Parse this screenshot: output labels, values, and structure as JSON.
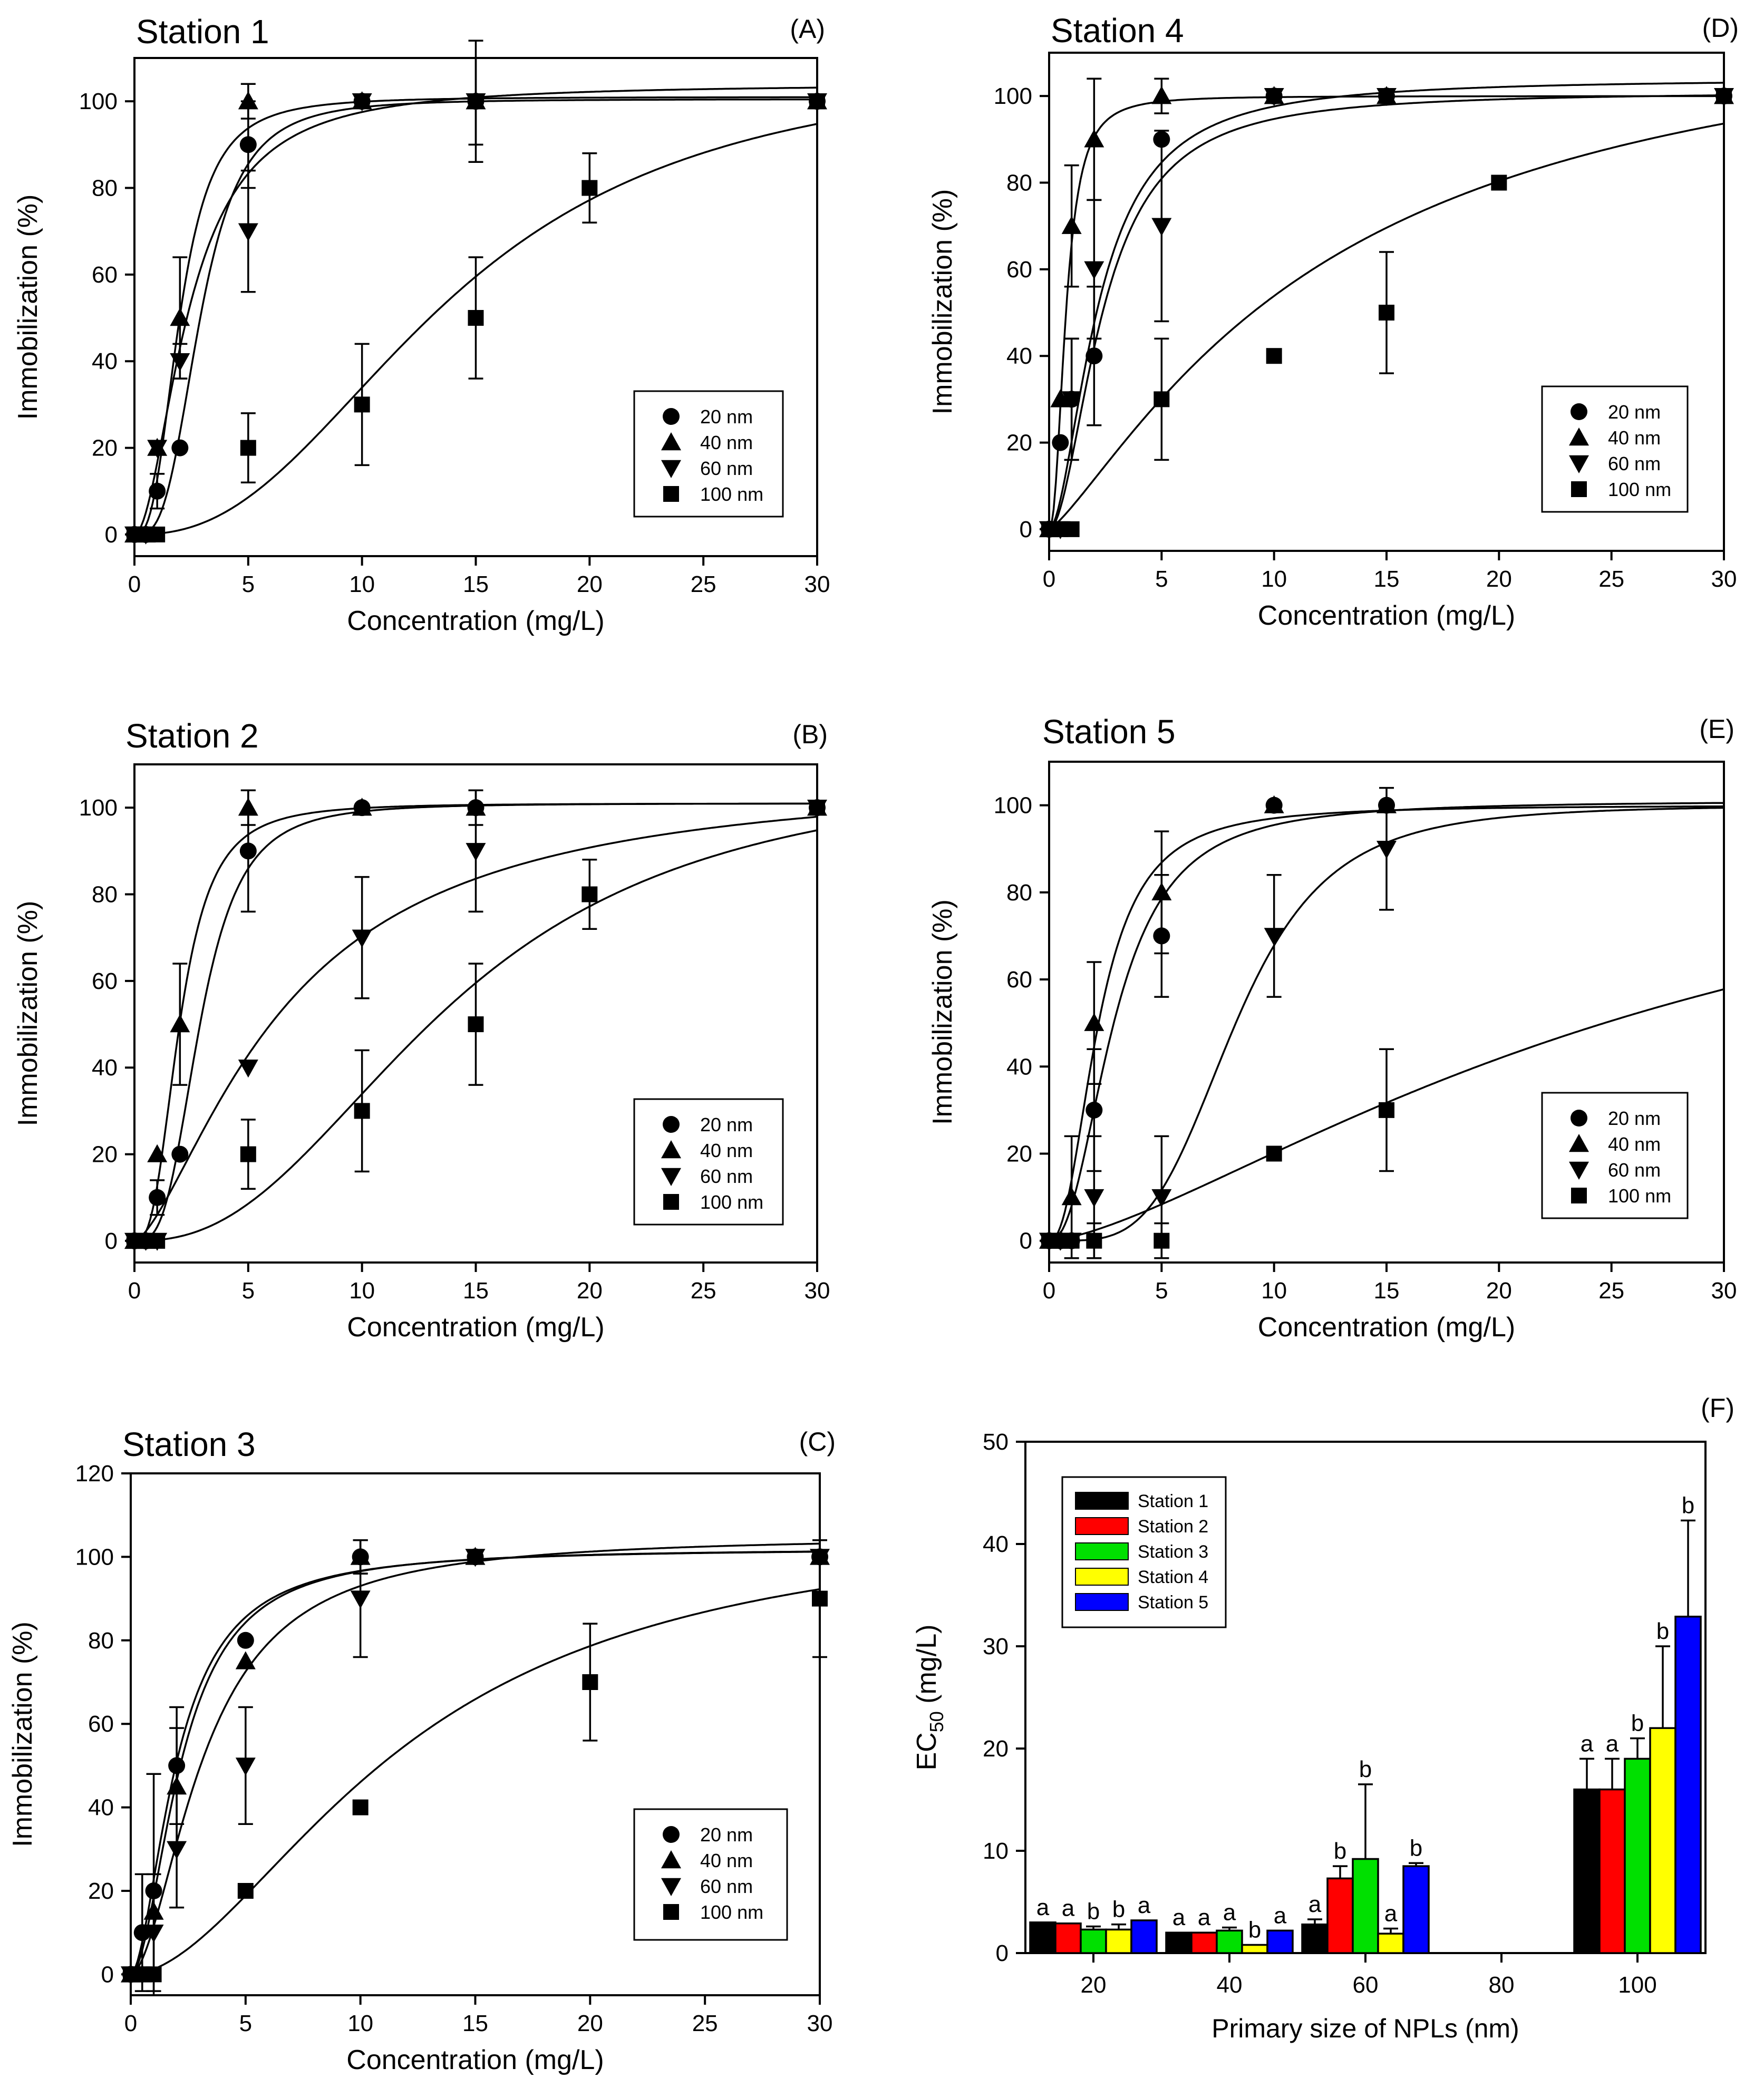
{
  "figure": {
    "x_axis_label": "Concentration (mg/L)",
    "y_axis_label": "Immobilization (%)",
    "legend_labels": [
      "20 nm",
      "40 nm",
      "60 nm",
      "100 nm"
    ]
  },
  "chart_data": [
    {
      "panel": "A",
      "type": "scatter",
      "title": "Station 1",
      "panel_label": "(A)",
      "xlabel": "Concentration (mg/L)",
      "ylabel": "Immobilization (%)",
      "xlim": [
        0,
        30
      ],
      "ylim": [
        -5,
        110
      ],
      "xticks": [
        0,
        5,
        10,
        15,
        20,
        25,
        30
      ],
      "yticks": [
        0,
        20,
        40,
        60,
        80,
        100
      ],
      "legend_position": "lower-right",
      "series": [
        {
          "name": "20 nm",
          "marker": "circle",
          "x": [
            0,
            0.5,
            1,
            2,
            5,
            10,
            15,
            30
          ],
          "y": [
            0,
            0,
            10,
            20,
            90,
            100,
            100,
            100
          ],
          "err": [
            0,
            0,
            4,
            0,
            10,
            0,
            0,
            0
          ],
          "curve": {
            "ec50": 2.9,
            "hill": 3.2,
            "top": 100.5
          }
        },
        {
          "name": "40 nm",
          "marker": "triangle-up",
          "x": [
            0,
            0.5,
            1,
            2,
            5,
            10,
            15,
            30
          ],
          "y": [
            0,
            0,
            20,
            50,
            100,
            100,
            100,
            100
          ],
          "err": [
            0,
            0,
            0,
            14,
            4,
            0,
            10,
            0
          ],
          "curve": {
            "ec50": 2.0,
            "hill": 2.8,
            "top": 101
          }
        },
        {
          "name": "60 nm",
          "marker": "triangle-down",
          "x": [
            0,
            0.5,
            1,
            2,
            5,
            10,
            15,
            30
          ],
          "y": [
            0,
            0,
            20,
            40,
            70,
            100,
            100,
            100
          ],
          "err": [
            0,
            0,
            0,
            4,
            14,
            0,
            14,
            0
          ],
          "curve": {
            "ec50": 2.4,
            "hill": 1.9,
            "top": 104
          }
        },
        {
          "name": "100 nm",
          "marker": "square",
          "x": [
            0,
            0.5,
            1,
            5,
            10,
            15,
            20,
            30
          ],
          "y": [
            0,
            0,
            0,
            20,
            30,
            50,
            80,
            100
          ],
          "err": [
            0,
            0,
            0,
            8,
            14,
            14,
            8,
            0
          ],
          "curve": {
            "ec50": 14.0,
            "hill": 2.4,
            "top": 110
          }
        }
      ]
    },
    {
      "panel": "B",
      "type": "scatter",
      "title": "Station 2",
      "panel_label": "(B)",
      "xlabel": "Concentration (mg/L)",
      "ylabel": "Immobilization (%)",
      "xlim": [
        0,
        30
      ],
      "ylim": [
        -5,
        110
      ],
      "xticks": [
        0,
        5,
        10,
        15,
        20,
        25,
        30
      ],
      "yticks": [
        0,
        20,
        40,
        60,
        80,
        100
      ],
      "legend_position": "lower-right",
      "series": [
        {
          "name": "20 nm",
          "marker": "circle",
          "x": [
            0,
            0.5,
            1,
            2,
            5,
            10,
            15,
            30
          ],
          "y": [
            0,
            0,
            10,
            20,
            90,
            100,
            100,
            100
          ],
          "err": [
            0,
            0,
            4,
            0,
            14,
            0,
            0,
            0
          ],
          "curve": {
            "ec50": 2.9,
            "hill": 3.2,
            "top": 101
          }
        },
        {
          "name": "40 nm",
          "marker": "triangle-up",
          "x": [
            0,
            0.5,
            1,
            2,
            5,
            10,
            15,
            30
          ],
          "y": [
            0,
            0,
            20,
            50,
            100,
            100,
            100,
            100
          ],
          "err": [
            0,
            0,
            0,
            14,
            4,
            0,
            4,
            0
          ],
          "curve": {
            "ec50": 2.0,
            "hill": 2.8,
            "top": 101
          }
        },
        {
          "name": "60 nm",
          "marker": "triangle-down",
          "x": [
            0,
            0.5,
            1,
            5,
            10,
            15,
            30
          ],
          "y": [
            0,
            0,
            0,
            40,
            70,
            90,
            100
          ],
          "err": [
            0,
            0,
            0,
            0,
            14,
            14,
            0
          ],
          "curve": {
            "ec50": 6.6,
            "hill": 1.5,
            "top": 108
          }
        },
        {
          "name": "100 nm",
          "marker": "square",
          "x": [
            0,
            0.5,
            1,
            5,
            10,
            15,
            20,
            30
          ],
          "y": [
            0,
            0,
            0,
            20,
            30,
            50,
            80,
            100
          ],
          "err": [
            0,
            0,
            0,
            8,
            14,
            14,
            8,
            0
          ],
          "curve": {
            "ec50": 14.0,
            "hill": 2.4,
            "top": 110
          }
        }
      ]
    },
    {
      "panel": "C",
      "type": "scatter",
      "title": "Station 3",
      "panel_label": "(C)",
      "xlabel": "Concentration (mg/L)",
      "ylabel": "Immobilization (%)",
      "xlim": [
        0,
        30
      ],
      "ylim": [
        -5,
        120
      ],
      "xticks": [
        0,
        5,
        10,
        15,
        20,
        25,
        30
      ],
      "yticks": [
        0,
        20,
        40,
        60,
        80,
        100,
        120
      ],
      "legend_position": "lower-right",
      "series": [
        {
          "name": "20 nm",
          "marker": "circle",
          "x": [
            0,
            0.5,
            1,
            2,
            5,
            10,
            15,
            30
          ],
          "y": [
            0,
            10,
            20,
            50,
            80,
            100,
            100,
            100
          ],
          "err": [
            0,
            14,
            28,
            14,
            0,
            4,
            0,
            0
          ],
          "curve": {
            "ec50": 2.0,
            "hill": 1.8,
            "top": 102
          }
        },
        {
          "name": "40 nm",
          "marker": "triangle-up",
          "x": [
            0,
            0.5,
            1,
            2,
            5,
            10,
            15,
            30
          ],
          "y": [
            0,
            0,
            15,
            45,
            75,
            100,
            100,
            100
          ],
          "err": [
            0,
            0,
            0,
            14,
            0,
            4,
            0,
            0
          ],
          "curve": {
            "ec50": 2.2,
            "hill": 1.9,
            "top": 102
          }
        },
        {
          "name": "60 nm",
          "marker": "triangle-down",
          "x": [
            0,
            0.5,
            1,
            2,
            5,
            10,
            15,
            30
          ],
          "y": [
            0,
            0,
            10,
            30,
            50,
            90,
            100,
            100
          ],
          "err": [
            0,
            0,
            14,
            14,
            14,
            14,
            0,
            0
          ],
          "curve": {
            "ec50": 3.2,
            "hill": 1.8,
            "top": 105
          }
        },
        {
          "name": "100 nm",
          "marker": "square",
          "x": [
            0,
            0.5,
            1,
            5,
            10,
            20,
            30
          ],
          "y": [
            0,
            0,
            0,
            20,
            40,
            70,
            90
          ],
          "err": [
            0,
            0,
            0,
            0,
            0,
            14,
            14
          ],
          "curve": {
            "ec50": 12.0,
            "hill": 1.8,
            "top": 110
          }
        }
      ]
    },
    {
      "panel": "D",
      "type": "scatter",
      "title": "Station 4",
      "panel_label": "(D)",
      "xlabel": "Concentration (mg/L)",
      "ylabel": "Immobilization (%)",
      "xlim": [
        0,
        30
      ],
      "ylim": [
        -5,
        110
      ],
      "xticks": [
        0,
        5,
        10,
        15,
        20,
        25,
        30
      ],
      "yticks": [
        0,
        20,
        40,
        60,
        80,
        100
      ],
      "legend_position": "lower-right",
      "series": [
        {
          "name": "20 nm",
          "marker": "circle",
          "x": [
            0,
            0.5,
            1,
            2,
            5,
            10,
            15,
            30
          ],
          "y": [
            0,
            20,
            30,
            40,
            90,
            100,
            100,
            100
          ],
          "err": [
            0,
            0,
            14,
            16,
            0,
            0,
            0,
            0
          ],
          "curve": {
            "ec50": 2.4,
            "hill": 1.9,
            "top": 101
          }
        },
        {
          "name": "40 nm",
          "marker": "triangle-up",
          "x": [
            0,
            0.5,
            1,
            2,
            5,
            10,
            15,
            30
          ],
          "y": [
            0,
            30,
            70,
            90,
            100,
            100,
            100,
            100
          ],
          "err": [
            0,
            0,
            14,
            14,
            4,
            0,
            0,
            0
          ],
          "curve": {
            "ec50": 0.75,
            "hill": 2.3,
            "top": 100
          }
        },
        {
          "name": "60 nm",
          "marker": "triangle-down",
          "x": [
            0,
            0.5,
            1,
            2,
            5,
            10,
            15,
            30
          ],
          "y": [
            0,
            0,
            30,
            60,
            70,
            100,
            100,
            100
          ],
          "err": [
            0,
            0,
            14,
            16,
            22,
            0,
            0,
            0
          ],
          "curve": {
            "ec50": 2.2,
            "hill": 1.8,
            "top": 104
          }
        },
        {
          "name": "100 nm",
          "marker": "square",
          "x": [
            0,
            0.5,
            1,
            5,
            10,
            15,
            20,
            30
          ],
          "y": [
            0,
            0,
            0,
            30,
            40,
            50,
            80,
            100
          ],
          "err": [
            0,
            0,
            0,
            14,
            0,
            14,
            0,
            0
          ],
          "curve": {
            "ec50": 12.5,
            "hill": 1.25,
            "top": 125
          }
        }
      ]
    },
    {
      "panel": "E",
      "type": "scatter",
      "title": "Station 5",
      "panel_label": "(E)",
      "xlabel": "Concentration (mg/L)",
      "ylabel": "Immobilization (%)",
      "xlim": [
        0,
        30
      ],
      "ylim": [
        -5,
        110
      ],
      "xticks": [
        0,
        5,
        10,
        15,
        20,
        25,
        30
      ],
      "yticks": [
        0,
        20,
        40,
        60,
        80,
        100
      ],
      "legend_position": "lower-right",
      "series": [
        {
          "name": "20 nm",
          "marker": "circle",
          "x": [
            0,
            0.5,
            1,
            2,
            5,
            10,
            15
          ],
          "y": [
            0,
            0,
            0,
            30,
            70,
            100,
            100
          ],
          "err": [
            0,
            0,
            0,
            14,
            14,
            0,
            0
          ],
          "curve": {
            "ec50": 2.9,
            "hill": 2.3,
            "top": 101
          }
        },
        {
          "name": "40 nm",
          "marker": "triangle-up",
          "x": [
            0,
            0.5,
            1,
            2,
            5,
            10,
            15
          ],
          "y": [
            0,
            0,
            10,
            50,
            80,
            100,
            100
          ],
          "err": [
            0,
            0,
            14,
            14,
            14,
            0,
            0
          ],
          "curve": {
            "ec50": 2.2,
            "hill": 2.3,
            "top": 100
          }
        },
        {
          "name": "60 nm",
          "marker": "triangle-down",
          "x": [
            0,
            0.5,
            1,
            2,
            5,
            10,
            15
          ],
          "y": [
            0,
            0,
            0,
            10,
            10,
            70,
            90
          ],
          "err": [
            0,
            0,
            0,
            14,
            14,
            14,
            14
          ],
          "curve": {
            "ec50": 8.3,
            "hill": 4.0,
            "top": 100
          }
        },
        {
          "name": "100 nm",
          "marker": "square",
          "x": [
            0,
            0.5,
            1,
            2,
            5,
            10,
            15
          ],
          "y": [
            0,
            0,
            0,
            0,
            0,
            20,
            30
          ],
          "err": [
            0,
            0,
            0,
            4,
            4,
            0,
            14
          ],
          "curve": {
            "ec50": 28.0,
            "hill": 1.45,
            "top": 110
          }
        }
      ]
    },
    {
      "panel": "F",
      "type": "bar",
      "title": "",
      "panel_label": "(F)",
      "xlabel": "Primary size of NPLs  (nm)",
      "ylabel": "EC50 (mg/L)",
      "categories": [
        "20",
        "40",
        "60",
        "80",
        "100"
      ],
      "ylim": [
        0,
        50
      ],
      "yticks": [
        0,
        10,
        20,
        30,
        40,
        50
      ],
      "legend_position": "top-left",
      "series": [
        {
          "name": "Station 1",
          "color": "#000000",
          "values": [
            3.0,
            2.0,
            2.8,
            null,
            16.0
          ],
          "err": [
            0,
            0,
            0.5,
            null,
            3.0
          ],
          "letters": [
            "a",
            "a",
            "a",
            null,
            "a"
          ]
        },
        {
          "name": "Station 2",
          "color": "#ff0000",
          "values": [
            2.9,
            2.0,
            7.3,
            null,
            16.0
          ],
          "err": [
            0,
            0,
            1.2,
            null,
            3.0
          ],
          "letters": [
            "a",
            "a",
            "b",
            null,
            "a"
          ]
        },
        {
          "name": "Station 3",
          "color": "#00e000",
          "values": [
            2.3,
            2.2,
            9.2,
            null,
            19.0
          ],
          "err": [
            0.3,
            0.3,
            7.3,
            null,
            2.0
          ],
          "letters": [
            "b",
            "a",
            "b",
            null,
            "b"
          ]
        },
        {
          "name": "Station 4",
          "color": "#ffff00",
          "values": [
            2.3,
            0.8,
            1.9,
            null,
            22.0
          ],
          "err": [
            0.5,
            0,
            0.5,
            null,
            8.0
          ],
          "letters": [
            "b",
            "b",
            "a",
            null,
            "b"
          ]
        },
        {
          "name": "Station 5",
          "color": "#0000ff",
          "values": [
            3.2,
            2.2,
            8.5,
            null,
            32.9
          ],
          "err": [
            0,
            0,
            0.3,
            null,
            9.4
          ],
          "letters": [
            "a",
            "a",
            "b",
            null,
            "b"
          ]
        }
      ]
    }
  ]
}
